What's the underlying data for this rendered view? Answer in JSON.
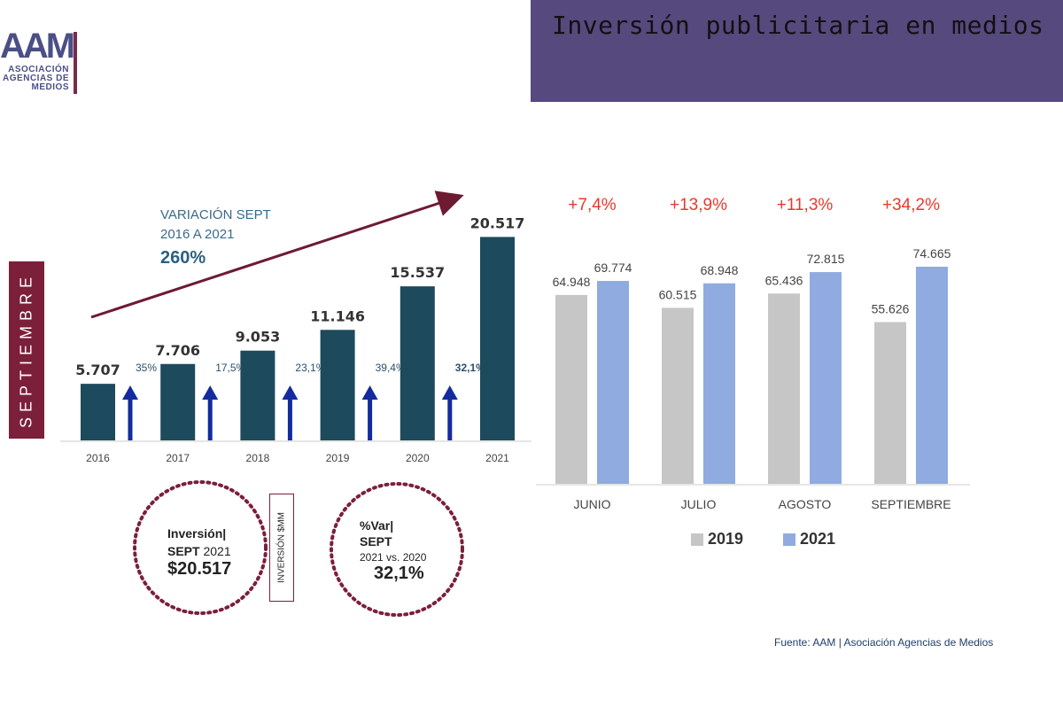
{
  "header": {
    "title": "Inversión publicitaria en medios"
  },
  "logo": {
    "letters": "AAM",
    "line1": "ASOCIACIÓN",
    "line2": "AGENCIAS DE",
    "line3": "MEDIOS"
  },
  "side_label": "SEPTIEMBRE",
  "variation": {
    "line1": "VARIACIÓN SEPT",
    "line2": "2016 A 2021",
    "value": "260%"
  },
  "circle_left": {
    "line1": "Inversión|",
    "line2_a": "SEPT",
    "line2_b": "2021",
    "value": "$20.517"
  },
  "inversion_label": "INVERSIÓN $MM",
  "circle_right": {
    "line1": "%Var|",
    "line2": "SEPT",
    "line3": "2021 vs. 2020",
    "value": "32,1%"
  },
  "source": "Fuente: AAM | Asociación Agencias de Medios",
  "colors": {
    "left_bars": "#1d4a5c",
    "arrows": "#132b9e",
    "bar_2019": "#c6c6c6",
    "bar_2021": "#8fabdf",
    "header": "#56497e",
    "accent": "#7b1f3b",
    "pct_red": "#e8382b"
  },
  "chart_data": [
    {
      "type": "bar",
      "categories": [
        "2016",
        "2017",
        "2018",
        "2019",
        "2020",
        "2021"
      ],
      "values": [
        5707,
        7706,
        9053,
        11146,
        15537,
        20517
      ],
      "value_labels": [
        "5.707",
        "7.706",
        "9.053",
        "11.146",
        "15.537",
        "20.517"
      ],
      "growth_labels": [
        "35%",
        "17,5%",
        "23,1%",
        "39,4%",
        "32,1%"
      ],
      "ylim": [
        0,
        21000
      ]
    },
    {
      "type": "bar",
      "categories": [
        "JUNIO",
        "JULIO",
        "AGOSTO",
        "SEPTIEMBRE"
      ],
      "series": [
        {
          "name": "2019",
          "values": [
            64948,
            60515,
            65436,
            55626
          ],
          "labels": [
            "64.948",
            "60.515",
            "65.436",
            "55.626"
          ]
        },
        {
          "name": "2021",
          "values": [
            69774,
            68948,
            72815,
            74665
          ],
          "labels": [
            "69.774",
            "68.948",
            "72.815",
            "74.665"
          ]
        }
      ],
      "variation_labels": [
        "+7,4%",
        "+13,9%",
        "+11,3%",
        "+34,2%"
      ],
      "ylim": [
        0,
        79000
      ],
      "legend_position": "bottom"
    }
  ]
}
